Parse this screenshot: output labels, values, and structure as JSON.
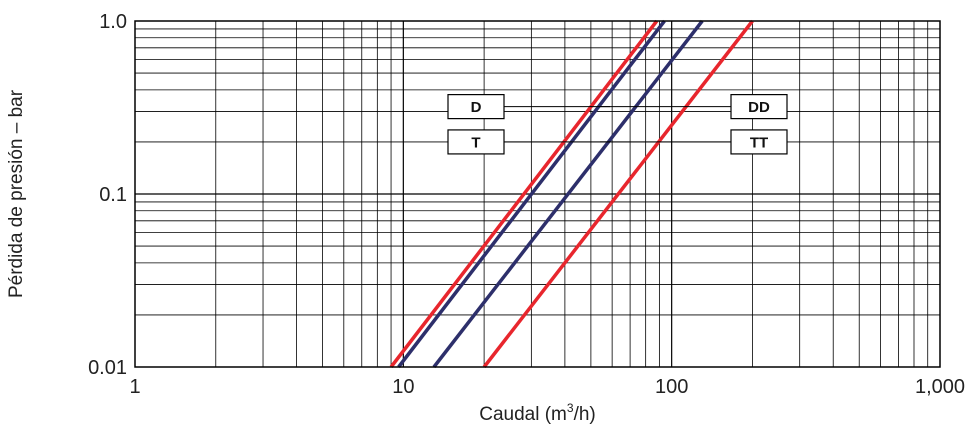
{
  "chart_data": {
    "type": "line",
    "x_scale": "log",
    "y_scale": "log",
    "xlim": [
      1,
      1000
    ],
    "ylim": [
      0.01,
      1.0
    ],
    "grid": true,
    "xlabel": {
      "prefix": "Caudal (m",
      "sup": "3",
      "suffix": "/h)"
    },
    "ylabel": "Pérdida de presión – bar",
    "x_ticks": [
      {
        "value": 1,
        "label": "1"
      },
      {
        "value": 10,
        "label": "10"
      },
      {
        "value": 100,
        "label": "100"
      },
      {
        "value": 1000,
        "label": "1,000"
      }
    ],
    "y_ticks": [
      {
        "value": 0.01,
        "label": "0.01"
      },
      {
        "value": 0.1,
        "label": "0.1"
      },
      {
        "value": 1.0,
        "label": "1.0"
      }
    ],
    "series": [
      {
        "name": "T",
        "color": "#e8262d",
        "points": [
          [
            9.0,
            0.01
          ],
          [
            88,
            1.0
          ]
        ]
      },
      {
        "name": "D",
        "color": "#2d2f6b",
        "points": [
          [
            9.6,
            0.01
          ],
          [
            94,
            1.0
          ]
        ]
      },
      {
        "name": "DD",
        "color": "#2d2f6b",
        "points": [
          [
            13.0,
            0.01
          ],
          [
            130,
            1.0
          ]
        ]
      },
      {
        "name": "TT",
        "color": "#e8262d",
        "points": [
          [
            20.0,
            0.01
          ],
          [
            200,
            1.0
          ]
        ]
      }
    ],
    "tags": [
      {
        "label": "D",
        "side": "left",
        "y": 0.32,
        "target_y": 0.32
      },
      {
        "label": "T",
        "side": "left",
        "y": 0.2,
        "target_y": 0.2
      },
      {
        "label": "DD",
        "side": "right",
        "y": 0.32,
        "target_y": 0.32
      },
      {
        "label": "TT",
        "side": "right",
        "y": 0.2,
        "target_y": 0.2
      }
    ]
  }
}
